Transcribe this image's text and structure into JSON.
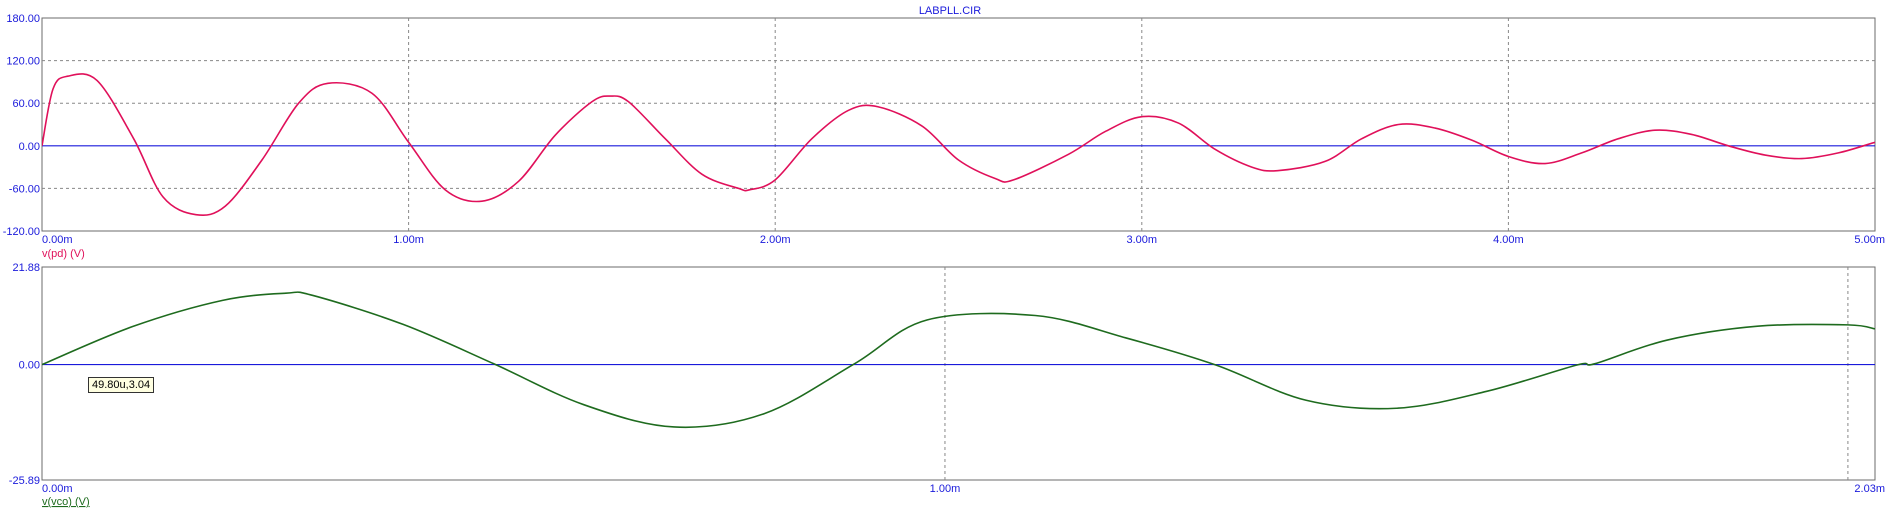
{
  "window": {
    "title": "LABPLL.CIR"
  },
  "colors": {
    "axis": "#1a1adb",
    "pd_trace": "#e0105a",
    "vco_trace": "#1e6b1e",
    "zero_line": "#1a1adb",
    "grid": "#888888"
  },
  "tooltip": {
    "text": "49.80u,3.04"
  },
  "chart_data": [
    {
      "type": "line",
      "title": "LABPLL.CIR",
      "xlim": [
        0,
        0.005
      ],
      "ylim": [
        -120,
        180
      ],
      "x_tick_labels": [
        "0.00m",
        "1.00m",
        "2.00m",
        "3.00m",
        "4.00m",
        "5.00m"
      ],
      "x_ticks": [
        0,
        0.001,
        0.002,
        0.003,
        0.004,
        0.005
      ],
      "y_tick_labels": [
        "180.00",
        "120.00",
        "60.00",
        "0.00",
        "-60.00",
        "-120.00"
      ],
      "y_ticks": [
        180,
        120,
        60,
        0,
        -60,
        -120
      ],
      "grid": true,
      "series": [
        {
          "name": "v(pd) (V)",
          "x": [
            0,
            3e-05,
            7e-05,
            0.00015,
            0.00025,
            0.00033,
            0.00042,
            0.0005,
            0.0006,
            0.0007,
            0.00078,
            0.0009,
            0.001,
            0.0011,
            0.0012,
            0.0013,
            0.0014,
            0.0015,
            0.00155,
            0.0016,
            0.0017,
            0.0018,
            0.0019,
            0.00193,
            0.002,
            0.0021,
            0.0022,
            0.00228,
            0.0024,
            0.0025,
            0.0026,
            0.00265,
            0.0028,
            0.0029,
            0.003,
            0.0031,
            0.0032,
            0.0033,
            0.00337,
            0.0035,
            0.0036,
            0.0037,
            0.0038,
            0.0039,
            0.004,
            0.0041,
            0.0042,
            0.0043,
            0.0044,
            0.0045,
            0.0046,
            0.0047,
            0.0048,
            0.0049,
            0.005
          ],
          "y": [
            0,
            80,
            98,
            92,
            10,
            -72,
            -97,
            -85,
            -20,
            60,
            88,
            74,
            5,
            -62,
            -78,
            -50,
            15,
            62,
            70,
            62,
            10,
            -40,
            -60,
            -62,
            -48,
            10,
            50,
            55,
            28,
            -20,
            -46,
            -48,
            -12,
            20,
            41,
            32,
            -5,
            -30,
            -35,
            -22,
            10,
            30,
            25,
            8,
            -15,
            -25,
            -10,
            10,
            22,
            16,
            0,
            -13,
            -18,
            -10,
            5
          ]
        }
      ]
    },
    {
      "type": "line",
      "title": "",
      "xlim": [
        0,
        0.00203
      ],
      "ylim": [
        -25.89,
        21.88
      ],
      "x_tick_labels": [
        "0.00m",
        "1.00m",
        "2.03m"
      ],
      "x_ticks": [
        0,
        0.001,
        0.00203
      ],
      "y_tick_labels": [
        "21.88",
        "0.00",
        "-25.89"
      ],
      "y_ticks": [
        21.88,
        0,
        -25.89
      ],
      "grid": true,
      "series": [
        {
          "name": "v(vco) (V)",
          "x": [
            0,
            0.0001,
            0.0002,
            0.00027,
            0.0003,
            0.0004,
            0.0005,
            0.0006,
            0.0007,
            0.0008,
            0.0009,
            0.00098,
            0.0011,
            0.0012,
            0.0013,
            0.0014,
            0.0015,
            0.0016,
            0.0017,
            0.00172,
            0.0018,
            0.0019,
            0.002,
            0.00203
          ],
          "y": [
            0,
            8.5,
            14.4,
            16.0,
            15.5,
            9.0,
            0.2,
            -9.0,
            -14.0,
            -11.0,
            0.2,
            10.0,
            11.0,
            6.0,
            -0.1,
            -8.0,
            -9.8,
            -6.0,
            -0.1,
            0.2,
            5.5,
            8.6,
            8.9,
            8.0
          ]
        }
      ]
    }
  ]
}
